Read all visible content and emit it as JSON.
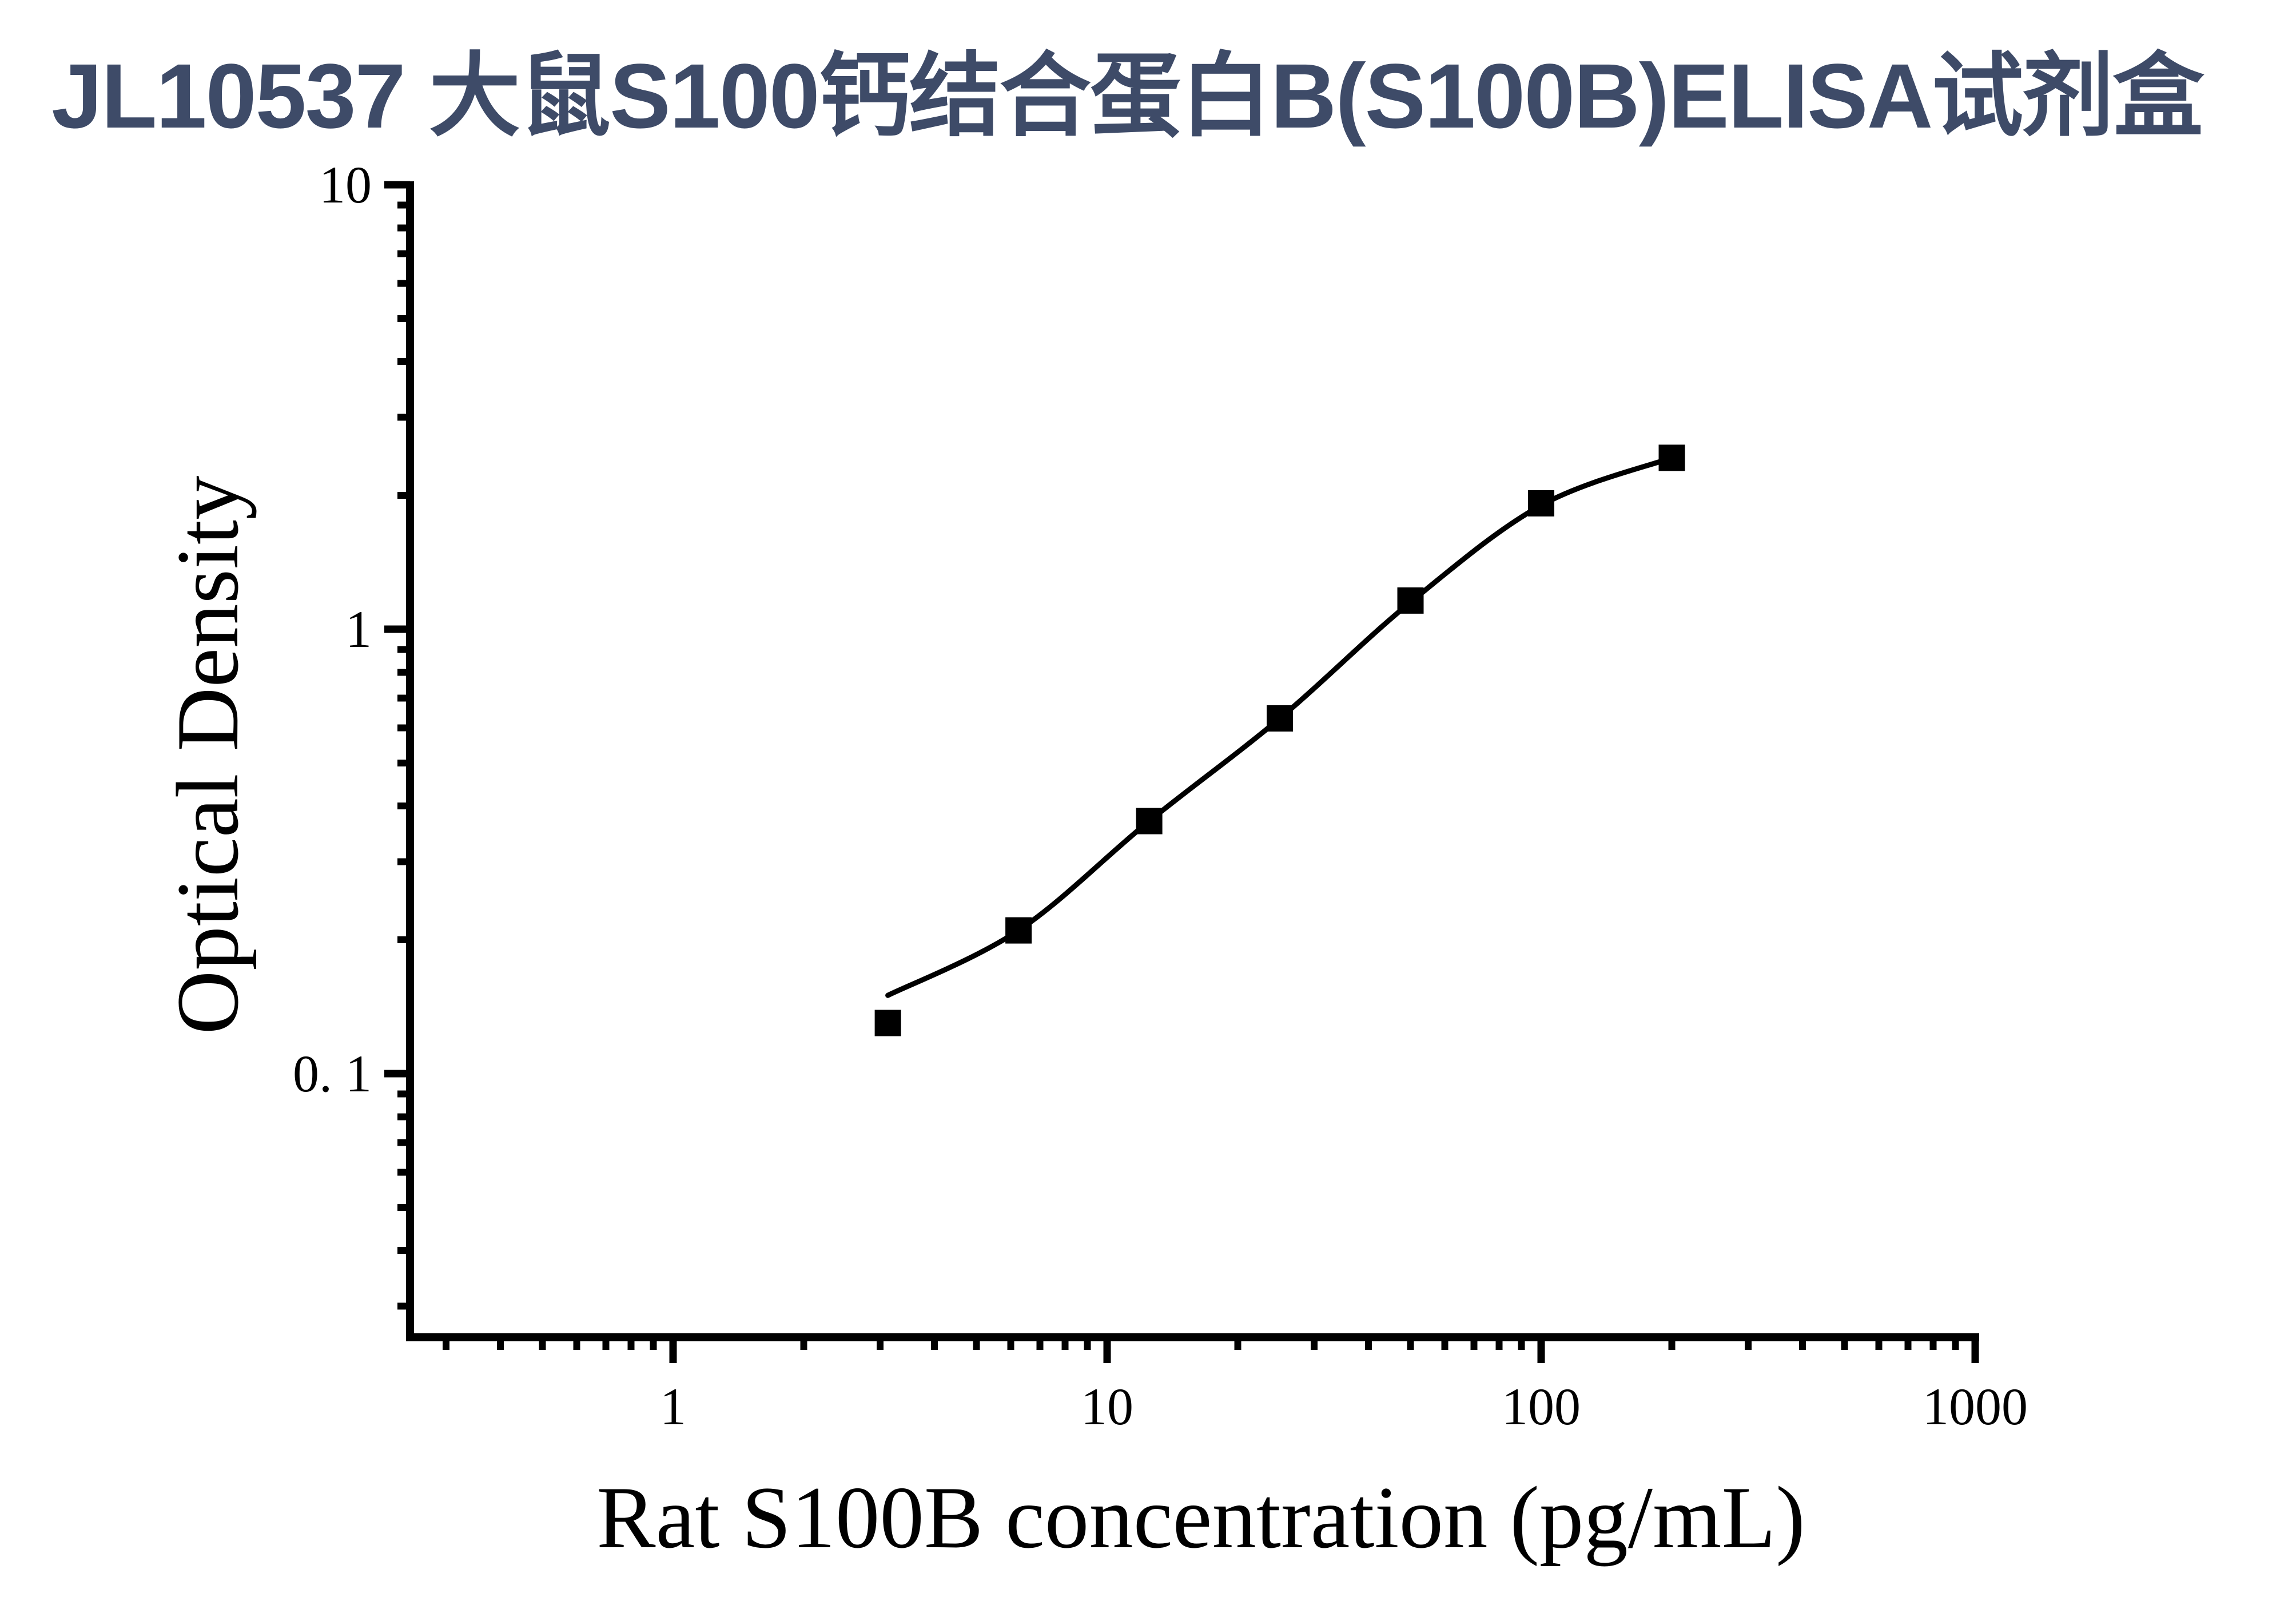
{
  "title": "JL10537 大鼠S100钙结合蛋白B(S100B)ELISA试剂盒",
  "colors": {
    "title_text": "#3E4B68",
    "plot_elements": "#000000",
    "background": "#FFFFFF"
  },
  "chart_data": {
    "type": "scatter",
    "title": "JL10537 大鼠S100钙结合蛋白B(S100B)ELISA试剂盒",
    "xlabel": "Rat S100B concentration (pg/mL)",
    "ylabel": "Optical Density",
    "x_scale": "log",
    "y_scale": "log",
    "xlim": [
      0.25,
      1000
    ],
    "ylim": [
      0.025,
      10
    ],
    "x_ticks": [
      1,
      10,
      100,
      1000
    ],
    "x_tick_labels": [
      "1",
      "10",
      "100",
      "1000"
    ],
    "y_ticks": [
      10,
      1,
      0.1
    ],
    "y_tick_labels": [
      "10",
      "1",
      "0. 1"
    ],
    "grid": false,
    "legend": "none",
    "marker": "filled-square",
    "series": [
      {
        "name": "standard curve data points",
        "x": [
          3.125,
          6.25,
          12.5,
          25,
          50,
          100,
          200
        ],
        "y": [
          0.13,
          0.21,
          0.37,
          0.63,
          1.16,
          1.92,
          2.43
        ]
      }
    ],
    "fit_curve": {
      "name": "4PL fitted curve",
      "x": [
        3.125,
        6.25,
        12.5,
        25,
        50,
        100,
        200
      ],
      "y": [
        0.15,
        0.21,
        0.37,
        0.63,
        1.15,
        1.9,
        2.43
      ]
    }
  }
}
